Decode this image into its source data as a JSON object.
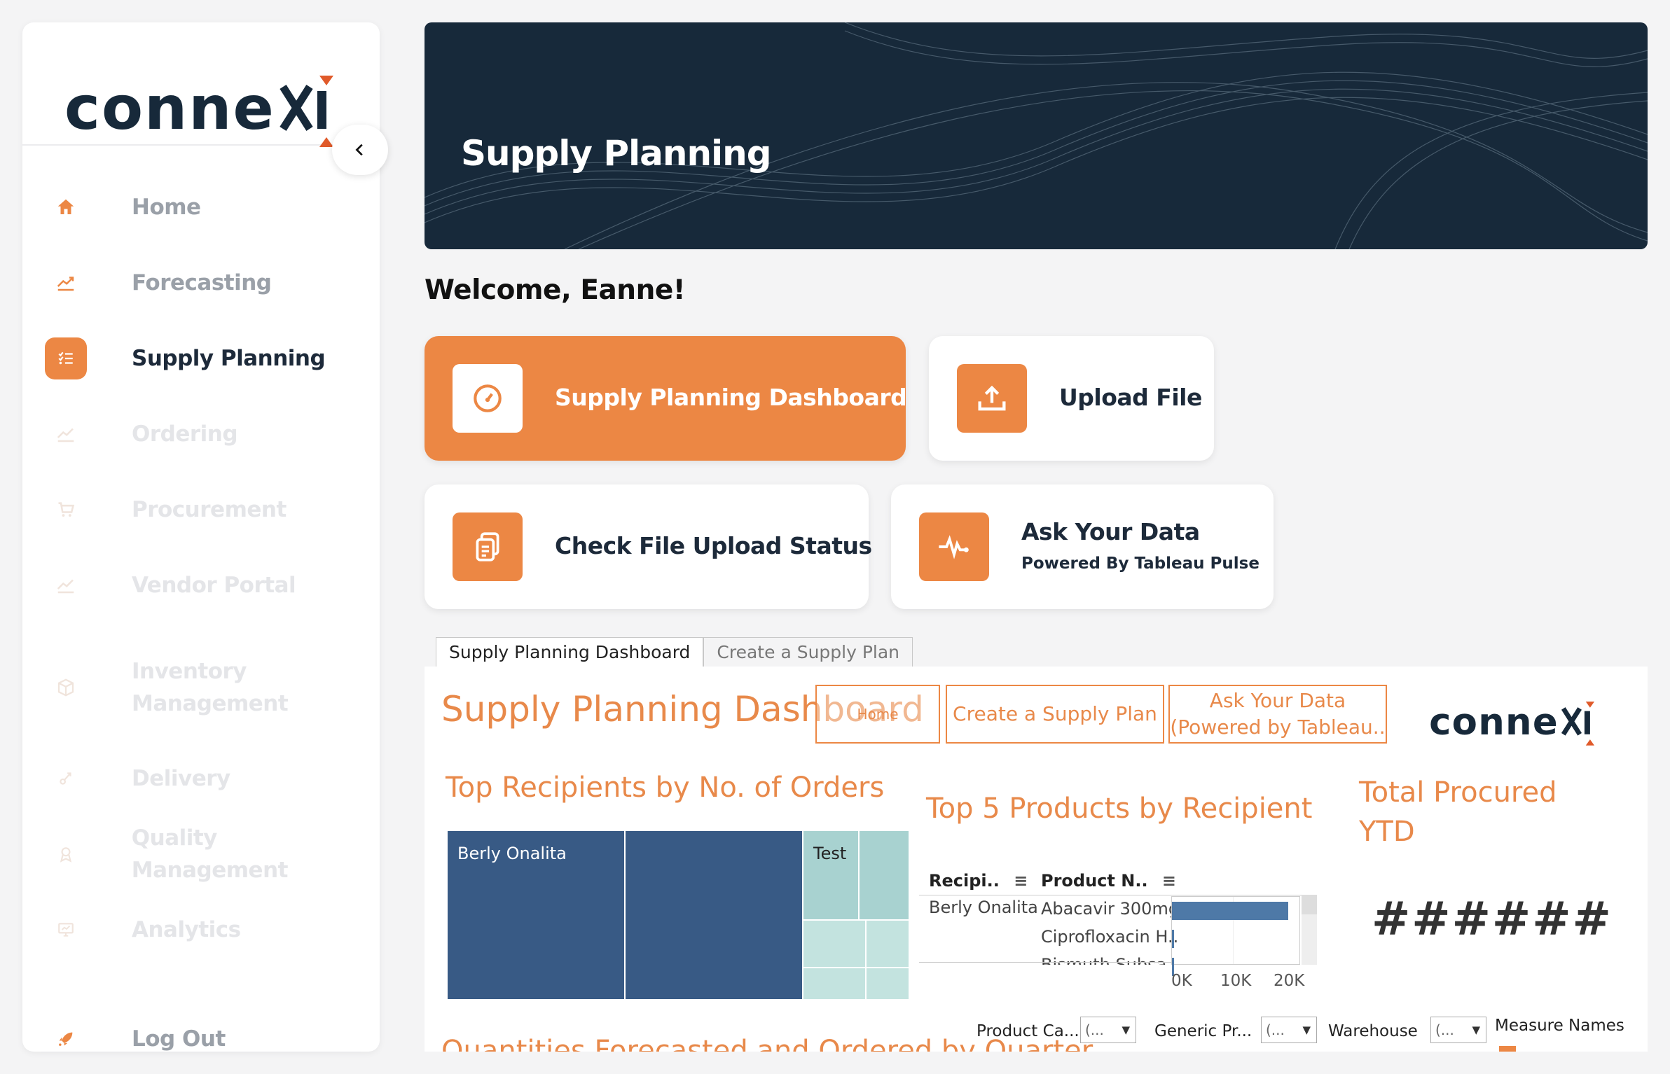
{
  "brand": {
    "name": "connexi",
    "accent": "#ec8744",
    "dark": "#17293a",
    "treemap_dark": "#385a85",
    "treemap_light": "#a8d2d0"
  },
  "sidebar": {
    "items": [
      {
        "label": "Home",
        "icon": "home-icon",
        "state": "mid"
      },
      {
        "label": "Forecasting",
        "icon": "trend-icon",
        "state": "mid"
      },
      {
        "label": "Supply Planning",
        "icon": "checklist-icon",
        "state": "active"
      },
      {
        "label": "Ordering",
        "icon": "trend-icon",
        "state": "disabled"
      },
      {
        "label": "Procurement",
        "icon": "cart-icon",
        "state": "disabled"
      },
      {
        "label": "Vendor Portal",
        "icon": "trend-icon",
        "state": "disabled"
      },
      {
        "label": "Inventory Management",
        "icon": "box-icon",
        "state": "disabled"
      },
      {
        "label": "Delivery",
        "icon": "delivery-icon",
        "state": "disabled"
      },
      {
        "label": "Quality Management",
        "icon": "quality-icon",
        "state": "disabled"
      },
      {
        "label": "Analytics",
        "icon": "monitor-icon",
        "state": "disabled"
      }
    ],
    "logout_label": "Log Out"
  },
  "banner": {
    "title": "Supply Planning"
  },
  "welcome": "Welcome, Eanne!",
  "actions": {
    "dashboard": {
      "title": "Supply Planning Dashboard",
      "icon": "gauge-icon"
    },
    "upload": {
      "title": "Upload File",
      "icon": "upload-icon"
    },
    "status": {
      "title": "Check File Upload Status",
      "icon": "documents-icon"
    },
    "ask": {
      "title": "Ask Your Data",
      "subtitle": "Powered By Tableau Pulse",
      "icon": "pulse-icon"
    }
  },
  "dashboard": {
    "tabs": [
      "Supply Planning Dashboard",
      "Create a Supply Plan"
    ],
    "title": "Supply Planning Dashboard",
    "buttons": {
      "home": "Home",
      "create": "Create a Supply Plan",
      "ask_line1": "Ask Your Data",
      "ask_line2": "(Powered by Tableau.."
    },
    "top_recipients": {
      "title": "Top Recipients by No. of Orders",
      "labels": {
        "first": "Berly Onalita",
        "second": "Test"
      }
    },
    "top_products": {
      "title": "Top 5 Products by Recipient",
      "col_recipient": "Recipi..",
      "col_product": "Product N..",
      "recipient": "Berly Onalita",
      "products": [
        "Abacavir 300mg",
        "Ciprofloxacin H..",
        "Bismuth Subsa.."
      ],
      "axis": [
        "0K",
        "10K",
        "20K"
      ]
    },
    "total_procured": {
      "title_line1": "Total Procured",
      "title_line2": "YTD",
      "value": "######"
    },
    "filters": {
      "product_category": "Product Ca...",
      "generic_product": "Generic Pr...",
      "warehouse": "Warehouse",
      "measure_names": "Measure Names",
      "select_value": "(..."
    },
    "bottom_title": "Quantities Forecasted and Ordered by Quarter"
  },
  "chart_data": {
    "type": "bar",
    "title": "Top 5 Products by Recipient",
    "categories": [
      "Abacavir 300mg",
      "Ciprofloxacin H..",
      "Bismuth Subsa.."
    ],
    "values": [
      21000,
      400,
      300
    ],
    "xlim": [
      0,
      22000
    ],
    "xticks": [
      "0K",
      "10K",
      "20K"
    ]
  }
}
